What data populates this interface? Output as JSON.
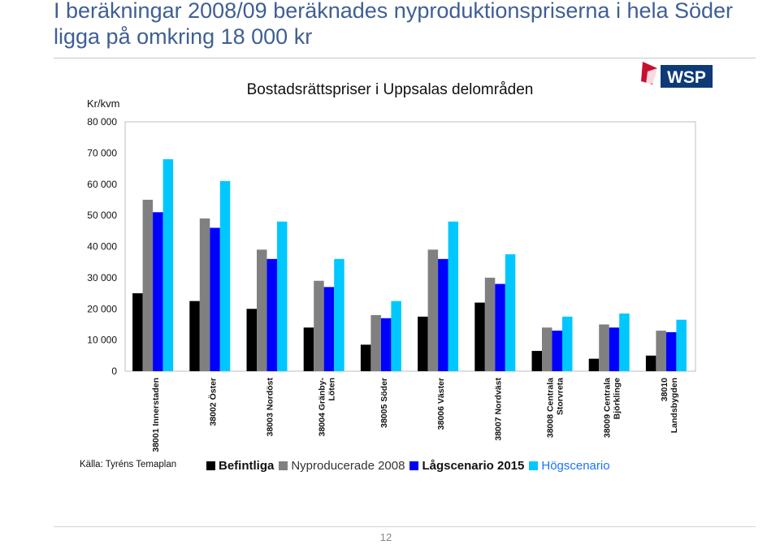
{
  "slide": {
    "heading": "I beräkningar 2008/09 beräknades nyproduktionspriserna i hela Söder ligga på omkring 18 000 kr",
    "logo_text": "WSP",
    "source": "Källa: Tyréns Temaplan",
    "page_number": "12"
  },
  "chart_data": {
    "type": "bar",
    "title": "Bostadsrättspriser i Uppsalas delområden",
    "ylabel": "Kr/kvm",
    "xlabel": "",
    "ylim": [
      0,
      80000
    ],
    "yticks": [
      0,
      10000,
      20000,
      30000,
      40000,
      50000,
      60000,
      70000,
      80000
    ],
    "ytick_labels": [
      "0",
      "10 000",
      "20 000",
      "30 000",
      "40 000",
      "50 000",
      "60 000",
      "70 000",
      "80 000"
    ],
    "grid": false,
    "legend_position": "bottom",
    "categories": [
      [
        "38001 Innerstaden"
      ],
      [
        "38002 Öster"
      ],
      [
        "38003 Nordöst"
      ],
      [
        "38004 Gränby-",
        "Löten"
      ],
      [
        "38005 Söder"
      ],
      [
        "38006 Väster"
      ],
      [
        "38007 Nordväst"
      ],
      [
        "38008 Centrala",
        "Storvreta"
      ],
      [
        "38009 Centrala",
        "Björklinge"
      ],
      [
        "38010",
        "Landsbygden"
      ]
    ],
    "series": [
      {
        "name": "Befintliga",
        "color": "#000000",
        "values": [
          25000,
          22500,
          20000,
          14000,
          8500,
          17500,
          22000,
          6500,
          4000,
          5000
        ]
      },
      {
        "name": "Nyproducerade 2008",
        "color": "#808080",
        "values": [
          55000,
          49000,
          39000,
          29000,
          18000,
          39000,
          30000,
          14000,
          15000,
          13000
        ]
      },
      {
        "name": "Lågscenario 2015",
        "color": "#0000ff",
        "values": [
          51000,
          46000,
          36000,
          27000,
          17000,
          36000,
          28000,
          13000,
          14000,
          12500
        ]
      },
      {
        "name": "Högscenario",
        "color": "#00c8ff",
        "values": [
          68000,
          61000,
          48000,
          36000,
          22500,
          48000,
          37500,
          17500,
          18500,
          16500
        ]
      }
    ]
  }
}
